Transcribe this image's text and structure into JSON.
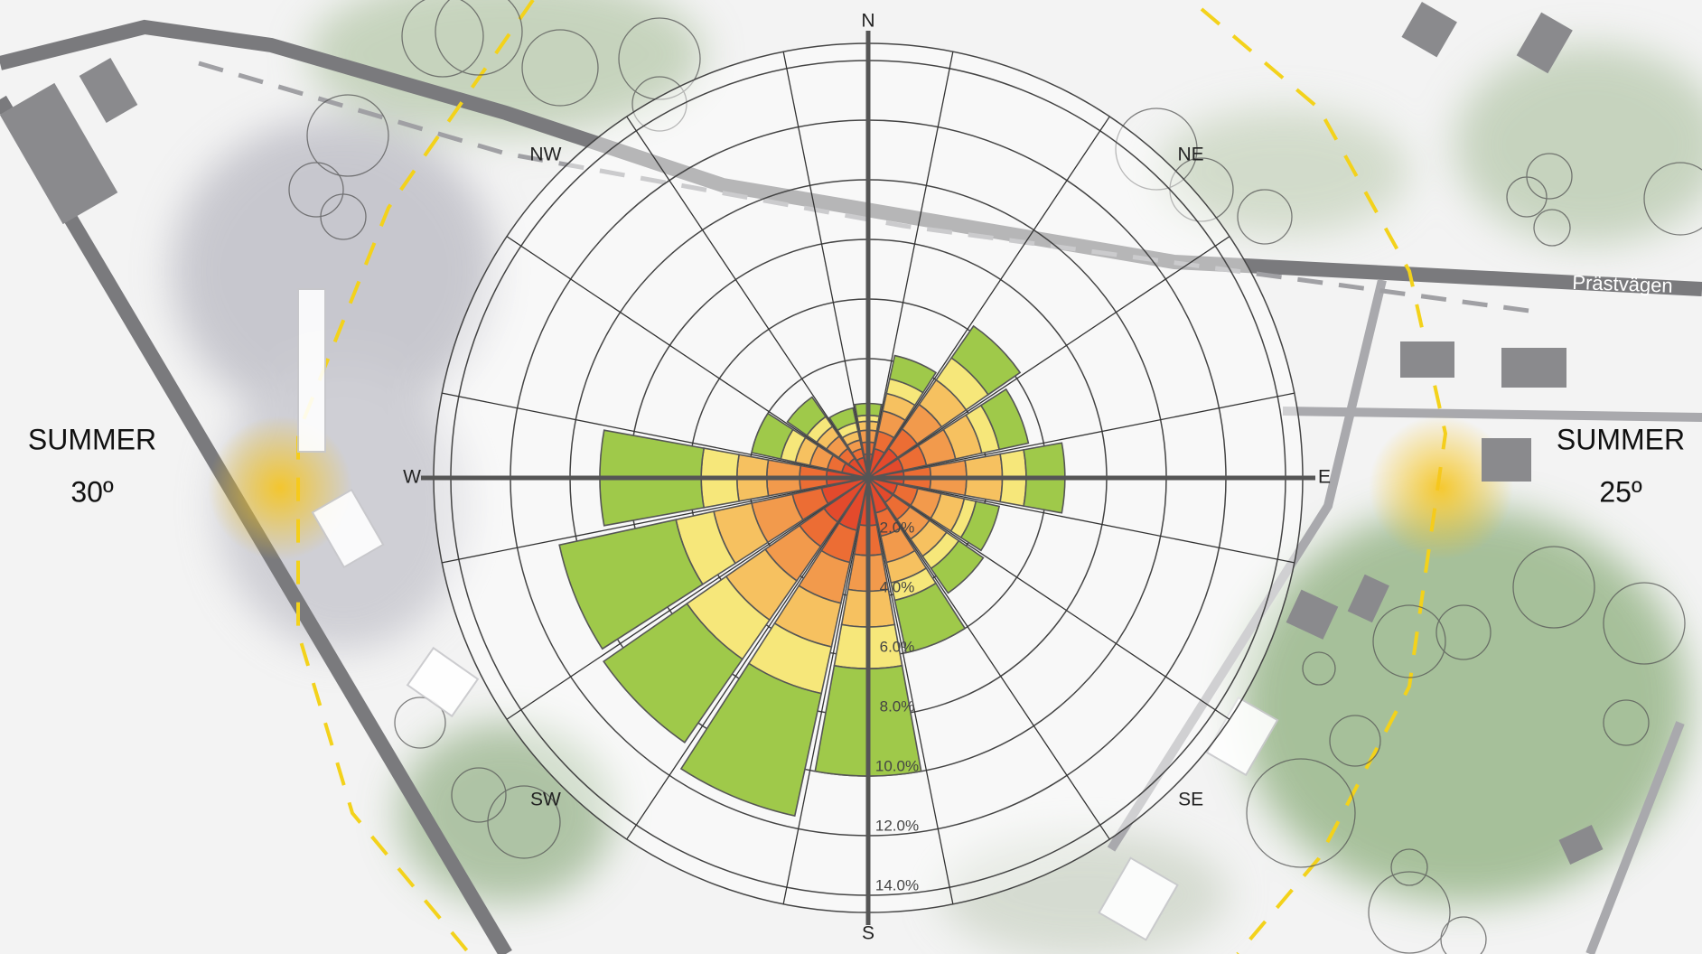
{
  "chart_data": {
    "type": "windrose",
    "categories": [
      "N",
      null,
      "NE",
      null,
      "E",
      null,
      "SE",
      null,
      "S",
      null,
      "SW",
      null,
      "W",
      null,
      "NW",
      null
    ],
    "series": [
      {
        "color": "#e34a2c",
        "values": [
          0.8,
          1.0,
          1.2,
          1.2,
          1.2,
          1.0,
          1.0,
          1.2,
          1.6,
          1.8,
          1.8,
          1.6,
          1.4,
          0.9,
          0.8,
          0.7
        ]
      },
      {
        "color": "#ec6d34",
        "values": [
          0.4,
          0.6,
          0.8,
          0.8,
          0.9,
          0.7,
          0.7,
          0.8,
          1.0,
          1.1,
          1.0,
          1.0,
          0.9,
          0.5,
          0.4,
          0.3
        ]
      },
      {
        "color": "#f29a4c",
        "values": [
          0.4,
          0.7,
          1.0,
          1.0,
          1.2,
          0.8,
          0.8,
          0.9,
          1.2,
          1.4,
          1.4,
          1.4,
          1.1,
          0.6,
          0.5,
          0.3
        ]
      },
      {
        "color": "#f6c160",
        "values": [
          0.3,
          0.6,
          1.0,
          0.9,
          1.2,
          0.8,
          0.7,
          0.7,
          1.2,
          1.5,
          1.6,
          1.3,
          1.0,
          0.5,
          0.4,
          0.3
        ]
      },
      {
        "color": "#f6e77a",
        "values": [
          0.2,
          0.5,
          0.9,
          0.6,
          0.8,
          0.4,
          0.5,
          0.6,
          1.4,
          1.6,
          1.6,
          1.3,
          1.2,
          0.5,
          0.4,
          0.3
        ]
      },
      {
        "color": "#9fc94a",
        "values": [
          0.4,
          0.8,
          1.3,
          1.0,
          1.3,
          0.8,
          1.0,
          1.8,
          3.6,
          4.2,
          3.4,
          4.0,
          3.4,
          1.0,
          0.8,
          0.5
        ]
      }
    ],
    "rlim": [
      0,
      14
    ],
    "rticks": [
      {
        "value": 2,
        "label": "2.0%"
      },
      {
        "value": 4,
        "label": "4.0%"
      },
      {
        "value": 6,
        "label": "6.0%"
      },
      {
        "value": 8,
        "label": "8.0%"
      },
      {
        "value": 10,
        "label": "10.0%"
      },
      {
        "value": 12,
        "label": "12.0%"
      },
      {
        "value": 14,
        "label": "14.0%"
      }
    ],
    "annotations": [
      "SUMMER",
      "30º",
      "SUMMER",
      "25º",
      "Prästvägen"
    ]
  }
}
